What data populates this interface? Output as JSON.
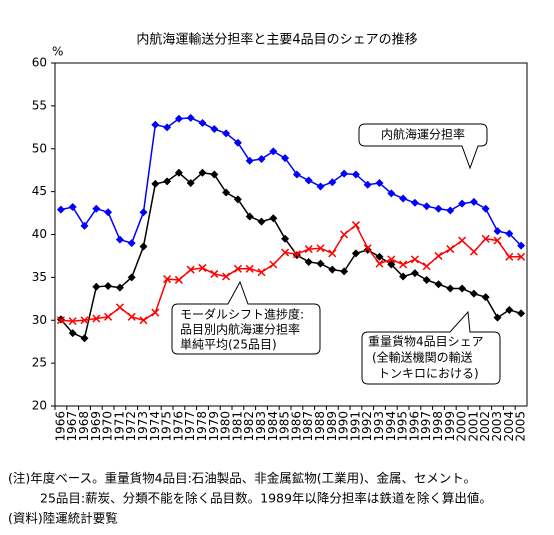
{
  "chart_data": {
    "type": "line",
    "title": "内航海運輸送分担率と主要4品目のシェアの推移",
    "y_unit": "%",
    "categories": [
      "1966",
      "1967",
      "1968",
      "1969",
      "1970",
      "1971",
      "1972",
      "1973",
      "1974",
      "1975",
      "1976",
      "1977",
      "1978",
      "1979",
      "1980",
      "1981",
      "1982",
      "1983",
      "1984",
      "1985",
      "1986",
      "1987",
      "1988",
      "1989",
      "1990",
      "1991",
      "1992",
      "1993",
      "1994",
      "1995",
      "1996",
      "1997",
      "1998",
      "1999",
      "2000",
      "2001",
      "2002",
      "2003",
      "2004",
      "2005"
    ],
    "series": [
      {
        "color": "#0000ff",
        "marker": "diamond",
        "values": [
          42.9,
          43.2,
          41.0,
          43.0,
          42.6,
          39.4,
          39.0,
          42.6,
          52.8,
          52.5,
          53.5,
          53.6,
          53.0,
          52.3,
          51.8,
          50.7,
          48.6,
          48.8,
          49.7,
          48.9,
          47.0,
          46.3,
          45.6,
          46.1,
          47.1,
          47.0,
          45.8,
          46.0,
          44.8,
          44.2,
          43.7,
          43.3,
          43.0,
          42.8,
          43.6,
          43.8,
          43.0,
          40.4,
          40.1,
          38.7
        ]
      },
      {
        "color": "#000000",
        "marker": "diamond",
        "values": [
          30.1,
          28.5,
          27.9,
          33.9,
          34.0,
          33.8,
          35.0,
          38.6,
          45.9,
          46.2,
          47.2,
          46.0,
          47.2,
          47.0,
          44.9,
          44.1,
          42.1,
          41.5,
          41.9,
          39.5,
          37.6,
          36.8,
          36.6,
          35.9,
          35.7,
          37.8,
          38.2,
          37.4,
          36.5,
          35.1,
          35.5,
          34.7,
          34.2,
          33.7,
          33.7,
          33.1,
          32.7,
          30.3,
          31.2,
          30.8
        ]
      },
      {
        "color": "#ff0000",
        "marker": "cross",
        "values": [
          30.0,
          29.9,
          30.0,
          30.2,
          30.4,
          31.5,
          30.4,
          30.0,
          30.9,
          34.8,
          34.7,
          35.9,
          36.1,
          35.4,
          35.1,
          36.0,
          36.0,
          35.6,
          36.5,
          37.9,
          37.7,
          38.3,
          38.4,
          37.8,
          40.0,
          41.1,
          38.4,
          36.6,
          37.1,
          36.5,
          37.1,
          36.3,
          37.5,
          38.3,
          39.3,
          38.0,
          39.5,
          39.3,
          37.4,
          37.4
        ]
      }
    ],
    "ylim": [
      20,
      60
    ],
    "yticks": [
      20,
      25,
      30,
      35,
      40,
      45,
      50,
      55,
      60
    ],
    "annotations": [
      {
        "lines": [
          "内航海運分担率"
        ]
      },
      {
        "lines": [
          "モーダルシフト進捗度:",
          "品目別内航海運分担率",
          "単純平均(25品目)"
        ]
      },
      {
        "lines": [
          "重量貨物4品目シェア",
          "(全輸送機関の輸送",
          "トンキロにおける)"
        ]
      }
    ],
    "notes": [
      "(注)年度ベース。重量貨物4品目:石油製品、非金属鉱物(工業用)、金属、セメント。",
      "25品目:薪炭、分類不能を除く品目数。1989年以降分担率は鉄道を除く算出値。",
      "(資料)陸運統計要覧"
    ]
  }
}
